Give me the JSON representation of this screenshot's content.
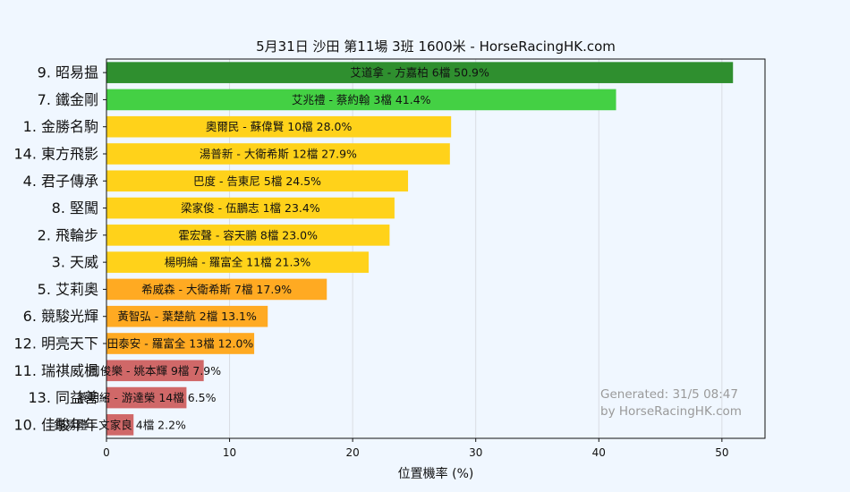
{
  "chart_data": {
    "type": "bar",
    "orientation": "horizontal",
    "title": "5月31日  沙田  第11場  3班  1600米 - HorseRacingHK.com",
    "xlabel": "位置機率 (%)",
    "ylabel": "",
    "xlim": [
      0,
      53.5
    ],
    "xticks": [
      "0",
      "10",
      "20",
      "30",
      "40",
      "50"
    ],
    "grid": true,
    "categories": [
      "9. 昭易揾",
      "7. 鐵金剛",
      "1. 金勝名駒",
      "14. 東方飛影",
      "4. 君子傳承",
      "8. 堅闖",
      "2. 飛輪步",
      "3. 天威",
      "5. 艾莉奧",
      "6. 競駿光輝",
      "12. 明亮天下",
      "11. 瑞祺威楓",
      "13. 同益善",
      "10. 佳駿年年"
    ],
    "values": [
      50.9,
      41.4,
      28.0,
      27.9,
      24.5,
      23.4,
      23.0,
      21.3,
      17.9,
      13.1,
      12.0,
      7.9,
      6.5,
      2.2
    ],
    "bar_labels": [
      "艾道拿 - 方嘉柏 6檔  50.9%",
      "艾兆禮 - 蔡約翰 3檔  41.4%",
      "奧爾民 - 蘇偉賢 10檔  28.0%",
      "湯普新 - 大衛希斯 12檔  27.9%",
      "巴度 - 告東尼 5檔  24.5%",
      "梁家俊 - 伍鵬志 1檔  23.4%",
      "霍宏聲 - 容天鵬 8檔  23.0%",
      "楊明綸 - 羅富全 11檔  21.3%",
      "希威森 - 大衛希斯 7檔  17.9%",
      "黃智弘 - 葉楚航 2檔  13.1%",
      "田泰安 - 羅富全 13檔  12.0%",
      "周俊樂 - 姚本輝 9檔  7.9%",
      "蔡明紹 - 游達榮 14檔  6.5%",
      "鍾易禮 - 文家良 4檔  2.2%"
    ],
    "colors": [
      "#2f8f2f",
      "#44d044",
      "#ffd21a",
      "#ffd21a",
      "#ffd21a",
      "#ffd21a",
      "#ffd21a",
      "#ffd21a",
      "#ffaa22",
      "#ffaa22",
      "#ffaa22",
      "#d06868",
      "#d06868",
      "#d06868"
    ]
  },
  "watermark": {
    "line1": "Generated: 31/5 08:47",
    "line2": "by HorseRacingHK.com"
  },
  "style": {
    "background": "#f0f7ff",
    "plot_background": "#f0f7ff"
  }
}
